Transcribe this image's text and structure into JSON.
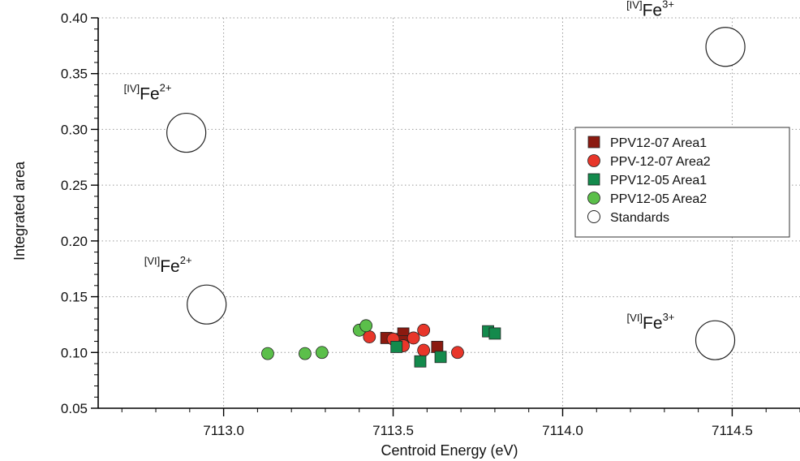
{
  "chart_data": {
    "type": "scatter",
    "title": "",
    "xlabel": "Centroid Energy (eV)",
    "ylabel": "Integrated area",
    "xlim": [
      7112.63,
      7114.7
    ],
    "ylim": [
      0.05,
      0.4
    ],
    "xticks": [
      7113.0,
      7113.5,
      7114.0,
      7114.5
    ],
    "xtick_labels": [
      "7113.0",
      "7113.5",
      "7114.0",
      "7114.5"
    ],
    "yticks": [
      0.05,
      0.1,
      0.15,
      0.2,
      0.25,
      0.3,
      0.35,
      0.4
    ],
    "ytick_labels": [
      "0.05",
      "0.10",
      "0.15",
      "0.20",
      "0.25",
      "0.30",
      "0.35",
      "0.40"
    ],
    "grid": true,
    "legend_position": "right",
    "series": [
      {
        "name": "PPV12-07 Area1",
        "marker": "square",
        "color": "#8b1a10",
        "points": [
          {
            "x": 7113.48,
            "y": 0.113
          },
          {
            "x": 7113.51,
            "y": 0.112
          },
          {
            "x": 7113.53,
            "y": 0.117
          },
          {
            "x": 7113.53,
            "y": 0.11
          },
          {
            "x": 7113.63,
            "y": 0.105
          }
        ]
      },
      {
        "name": "PPV-12-07 Area2",
        "marker": "circle",
        "color": "#e8362a",
        "points": [
          {
            "x": 7113.43,
            "y": 0.114
          },
          {
            "x": 7113.5,
            "y": 0.112
          },
          {
            "x": 7113.53,
            "y": 0.106
          },
          {
            "x": 7113.56,
            "y": 0.113
          },
          {
            "x": 7113.59,
            "y": 0.12
          },
          {
            "x": 7113.59,
            "y": 0.102
          },
          {
            "x": 7113.69,
            "y": 0.1
          }
        ]
      },
      {
        "name": "PPV12-05 Area1",
        "marker": "square",
        "color": "#138a4c",
        "points": [
          {
            "x": 7113.51,
            "y": 0.105
          },
          {
            "x": 7113.58,
            "y": 0.092
          },
          {
            "x": 7113.64,
            "y": 0.096
          },
          {
            "x": 7113.78,
            "y": 0.119
          },
          {
            "x": 7113.8,
            "y": 0.117
          }
        ]
      },
      {
        "name": "PPV12-05 Area2",
        "marker": "circle",
        "color": "#5bbf4a",
        "points": [
          {
            "x": 7113.13,
            "y": 0.099
          },
          {
            "x": 7113.24,
            "y": 0.099
          },
          {
            "x": 7113.29,
            "y": 0.1
          },
          {
            "x": 7113.4,
            "y": 0.12
          },
          {
            "x": 7113.42,
            "y": 0.124
          }
        ]
      },
      {
        "name": "Standards",
        "marker": "open-circle",
        "color": "#ffffff",
        "points": [
          {
            "x": 7112.89,
            "y": 0.297,
            "label": "[IV]Fe2+"
          },
          {
            "x": 7112.95,
            "y": 0.143,
            "label": "[VI]Fe2+"
          },
          {
            "x": 7114.48,
            "y": 0.374,
            "label": "[IV]Fe3+"
          },
          {
            "x": 7114.45,
            "y": 0.111,
            "label": "[VI]Fe3+"
          }
        ]
      }
    ],
    "annotations": [
      {
        "sup": "IV",
        "base": "Fe",
        "charge": "2+"
      },
      {
        "sup": "VI",
        "base": "Fe",
        "charge": "2+"
      },
      {
        "sup": "IV",
        "base": "Fe",
        "charge": "3+"
      },
      {
        "sup": "VI",
        "base": "Fe",
        "charge": "3+"
      }
    ]
  }
}
